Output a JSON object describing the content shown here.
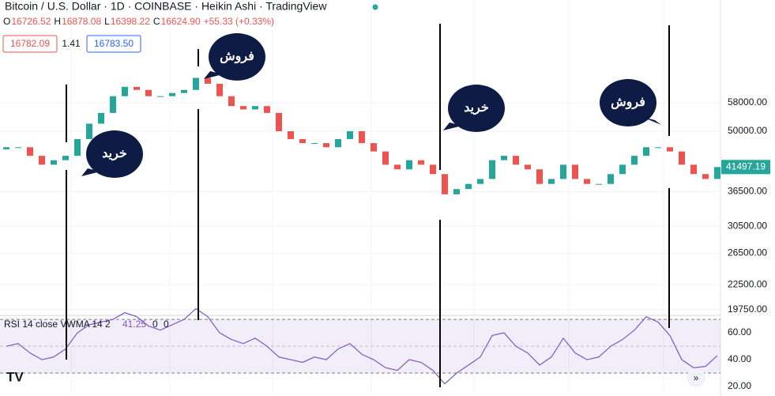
{
  "chart_data": {
    "type": "candlestick",
    "title": "Bitcoin / U.S. Dollar · 1D · COINBASE · Heikin Ashi · TradingView",
    "ohlc_labels": [
      "O",
      "H",
      "L",
      "C"
    ],
    "ohlc_values": [
      "16726.52",
      "16878.08",
      "16398.22",
      "16624.90"
    ],
    "change": "+55.33 (+0.33%)",
    "bid": "16782.09",
    "spread": "1.41",
    "ask": "16783.50",
    "log_scale": true,
    "up_color": "#26a69a",
    "down_color": "#ef5350",
    "open": [
      45500,
      46000,
      46000,
      44000,
      42000,
      43000,
      44000,
      48000,
      52000,
      55000,
      60000,
      63000,
      62000,
      60000,
      60000,
      61000,
      62000,
      66000,
      64000,
      60000,
      57000,
      56000,
      57000,
      55000,
      50000,
      48000,
      47000,
      47000,
      46000,
      48000,
      50000,
      47000,
      45000,
      42000,
      41000,
      43000,
      42000,
      40000,
      36000,
      37000,
      38000,
      39000,
      43000,
      44000,
      42000,
      41000,
      38000,
      39000,
      42000,
      39000,
      38000,
      38000,
      40000,
      42000,
      44000,
      46000,
      46000,
      45000,
      42000,
      40000,
      39000
    ],
    "close": [
      46000,
      46000,
      44000,
      42000,
      43000,
      44000,
      48000,
      52000,
      55000,
      60000,
      63000,
      62000,
      60000,
      60000,
      61000,
      62000,
      66000,
      64000,
      60000,
      57000,
      56000,
      57000,
      55000,
      50000,
      48000,
      47000,
      47000,
      46000,
      48000,
      50000,
      47000,
      45000,
      42000,
      41000,
      43000,
      42000,
      40000,
      36000,
      37000,
      38000,
      39000,
      43000,
      44000,
      42000,
      41000,
      38000,
      39000,
      42000,
      39000,
      38000,
      38000,
      40000,
      42000,
      44000,
      46000,
      46000,
      45000,
      42000,
      40000,
      39000,
      41497.19
    ],
    "ylim": [
      19250,
      99000
    ],
    "yticks": [
      {
        "value": 58000,
        "label": "58000.00"
      },
      {
        "value": 50000,
        "label": "50000.00"
      },
      {
        "value": 36500,
        "label": "36500.00"
      },
      {
        "value": 30500,
        "label": "30500.00"
      },
      {
        "value": 26500,
        "label": "26500.00"
      },
      {
        "value": 22500,
        "label": "22500.00"
      },
      {
        "value": 19750,
        "label": "19750.00"
      }
    ],
    "rsi": {
      "label": "RSI 14 close VWMA 14 2",
      "value": "41.25",
      "extra": [
        "0",
        "0"
      ],
      "color": "#7e57c2",
      "values": [
        50,
        52,
        45,
        40,
        42,
        48,
        60,
        66,
        68,
        70,
        75,
        72,
        65,
        62,
        66,
        70,
        78,
        72,
        60,
        55,
        52,
        56,
        50,
        42,
        40,
        38,
        42,
        40,
        48,
        52,
        44,
        40,
        34,
        32,
        40,
        38,
        32,
        22,
        30,
        36,
        42,
        58,
        60,
        50,
        45,
        36,
        42,
        56,
        45,
        40,
        42,
        50,
        55,
        62,
        72,
        68,
        58,
        40,
        34,
        35,
        43
      ],
      "ylim": [
        15.3,
        72.4
      ],
      "yticks": [
        {
          "value": 60,
          "label": "60.00"
        },
        {
          "value": 40,
          "label": "40.00"
        },
        {
          "value": 20,
          "label": "20.00"
        }
      ],
      "bands": [
        70,
        50,
        30
      ]
    },
    "annotations": [
      "خرید",
      "فروش",
      "خرید",
      "فروش"
    ]
  }
}
